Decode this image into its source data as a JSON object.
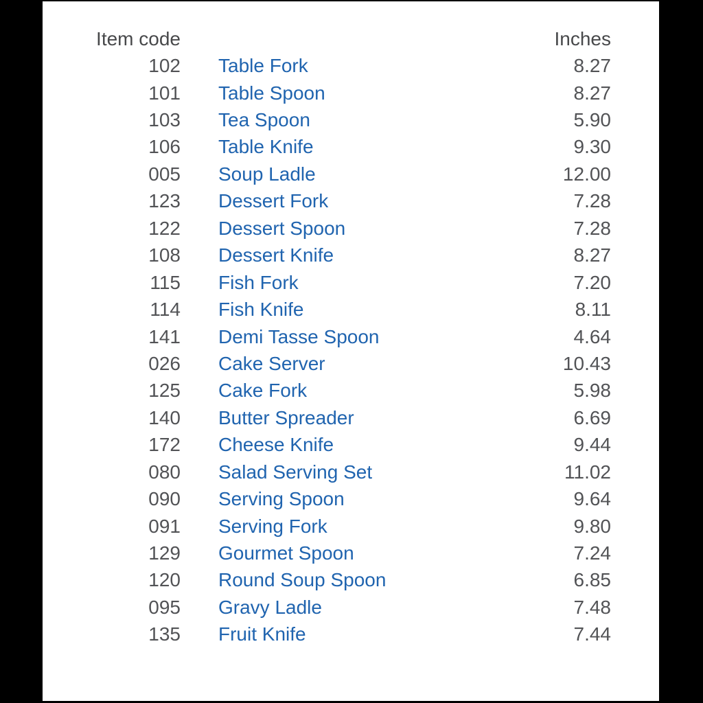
{
  "table": {
    "headers": {
      "code": "Item code",
      "name": "",
      "inches": "Inches"
    },
    "rows": [
      {
        "code": "102",
        "name": "Table Fork",
        "inches": "8.27"
      },
      {
        "code": "101",
        "name": "Table Spoon",
        "inches": "8.27"
      },
      {
        "code": "103",
        "name": "Tea Spoon",
        "inches": "5.90"
      },
      {
        "code": "106",
        "name": "Table Knife",
        "inches": "9.30"
      },
      {
        "code": "005",
        "name": "Soup Ladle",
        "inches": "12.00"
      },
      {
        "code": "123",
        "name": "Dessert Fork",
        "inches": "7.28"
      },
      {
        "code": "122",
        "name": "Dessert Spoon",
        "inches": "7.28"
      },
      {
        "code": "108",
        "name": "Dessert Knife",
        "inches": "8.27"
      },
      {
        "code": "115",
        "name": "Fish Fork",
        "inches": "7.20"
      },
      {
        "code": "114",
        "name": "Fish Knife",
        "inches": "8.11"
      },
      {
        "code": "141",
        "name": "Demi Tasse Spoon",
        "inches": "4.64"
      },
      {
        "code": "026",
        "name": "Cake Server",
        "inches": "10.43"
      },
      {
        "code": "125",
        "name": "Cake Fork",
        "inches": "5.98"
      },
      {
        "code": "140",
        "name": "Butter Spreader",
        "inches": "6.69"
      },
      {
        "code": "172",
        "name": "Cheese Knife",
        "inches": "9.44"
      },
      {
        "code": "080",
        "name": "Salad Serving Set",
        "inches": "11.02"
      },
      {
        "code": "090",
        "name": "Serving Spoon",
        "inches": "9.64"
      },
      {
        "code": "091",
        "name": "Serving Fork",
        "inches": "9.80"
      },
      {
        "code": "129",
        "name": "Gourmet Spoon",
        "inches": "7.24"
      },
      {
        "code": "120",
        "name": "Round Soup Spoon",
        "inches": "6.85"
      },
      {
        "code": "095",
        "name": "Gravy Ladle",
        "inches": "7.48"
      },
      {
        "code": "135",
        "name": "Fruit Knife",
        "inches": "7.44"
      }
    ],
    "colors": {
      "link_blue": "#2064af",
      "value_gray": "#525356",
      "header_gray": "#48494b",
      "letterbox_black": "#000000",
      "background": "#ffffff"
    }
  }
}
